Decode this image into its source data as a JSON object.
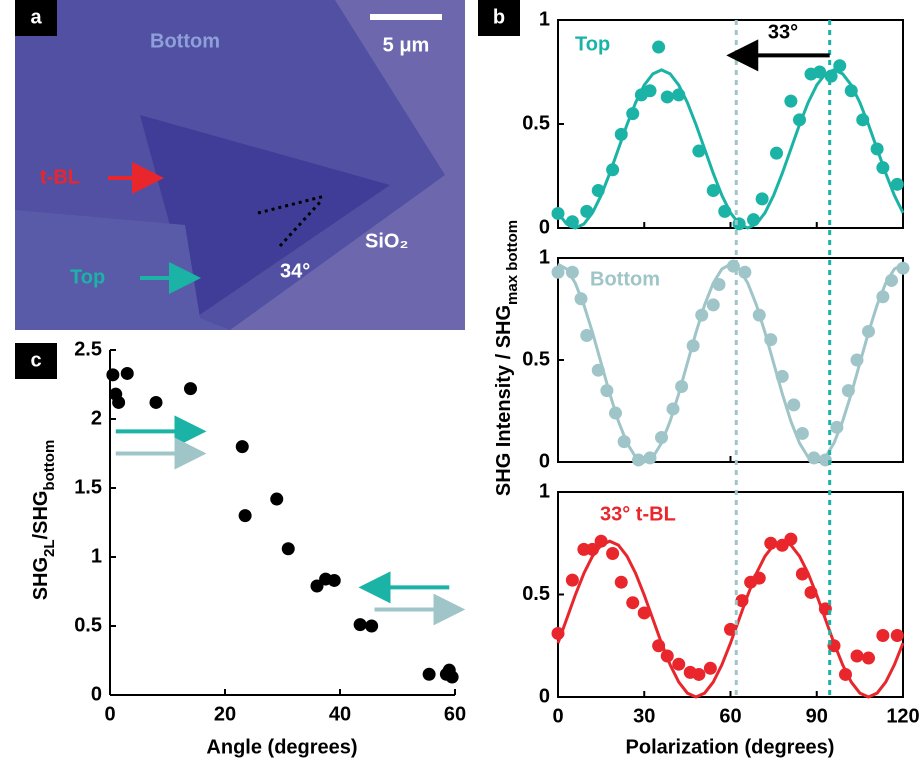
{
  "image_panel": {
    "panel_label": "a",
    "labels": {
      "bottom": "Bottom",
      "scale": "5 μm",
      "tbl": "t-BL",
      "top": "Top",
      "angle": "34°",
      "substrate": "SiO₂"
    }
  },
  "chart_data": [
    {
      "type": "scatter",
      "panel_label": "b",
      "xlim": [
        0,
        120
      ],
      "xticks": [
        0,
        30,
        60,
        90,
        120
      ],
      "xtick_labels": false,
      "ylim": [
        0,
        1
      ],
      "yticks": [
        0,
        0.5,
        1
      ],
      "frame": true,
      "series": [
        {
          "name": "Top",
          "color": "#1ab3a6",
          "type": "scatter",
          "x": [
            0,
            5,
            10,
            14,
            19,
            22,
            26,
            29,
            32,
            35,
            38,
            42,
            49,
            54,
            58,
            63,
            68,
            71,
            76,
            81,
            84,
            88,
            91,
            95,
            98,
            102,
            106,
            111,
            113,
            118
          ],
          "values": [
            0.07,
            0.03,
            0.08,
            0.18,
            0.28,
            0.45,
            0.55,
            0.64,
            0.66,
            0.87,
            0.63,
            0.64,
            0.37,
            0.18,
            0.08,
            0.02,
            0.04,
            0.14,
            0.36,
            0.61,
            0.52,
            0.74,
            0.75,
            0.73,
            0.78,
            0.66,
            0.52,
            0.38,
            0.29,
            0.21
          ]
        },
        {
          "color": "#1ab3a6",
          "type": "line",
          "x": [
            0,
            3,
            6,
            9,
            12,
            15,
            18,
            21,
            24,
            27,
            30,
            33,
            36,
            39,
            42,
            45,
            48,
            51,
            54,
            57,
            60,
            63,
            66,
            69,
            72,
            75,
            78,
            81,
            84,
            87,
            90,
            93,
            96,
            99,
            102,
            105,
            108,
            111,
            114,
            117,
            120
          ],
          "values": [
            0.073,
            0.019,
            0,
            0.019,
            0.073,
            0.157,
            0.263,
            0.38,
            0.497,
            0.603,
            0.687,
            0.741,
            0.76,
            0.741,
            0.687,
            0.603,
            0.497,
            0.38,
            0.263,
            0.157,
            0.073,
            0.019,
            0,
            0.019,
            0.073,
            0.157,
            0.263,
            0.38,
            0.497,
            0.603,
            0.687,
            0.741,
            0.76,
            0.741,
            0.687,
            0.603,
            0.497,
            0.38,
            0.263,
            0.157,
            0.073
          ]
        }
      ],
      "vlines": [
        {
          "x": 62,
          "color": "#9fc5c8"
        },
        {
          "x": 94.5,
          "color": "#1ab3a6"
        }
      ],
      "annotation": {
        "text": "33°",
        "from": 94.5,
        "to": 62,
        "y": 0.83
      }
    },
    {
      "type": "scatter",
      "xlim": [
        0,
        120
      ],
      "xticks": [
        0,
        30,
        60,
        90,
        120
      ],
      "xtick_labels": false,
      "ylim": [
        0,
        1
      ],
      "yticks": [
        0,
        0.5,
        1
      ],
      "frame": true,
      "ylabel": [
        "SHG Intensity / SHG",
        "max bottom"
      ],
      "series": [
        {
          "name": "Bottom",
          "color": "#9fc5c8",
          "type": "scatter",
          "x": [
            0,
            5,
            8,
            10,
            14,
            17,
            20,
            23,
            28,
            32,
            36,
            40,
            43,
            47,
            50,
            54,
            56,
            61,
            65,
            70,
            74,
            78,
            82,
            85,
            89,
            93,
            97,
            101,
            104,
            108,
            113,
            116,
            120
          ],
          "values": [
            0.93,
            0.93,
            0.8,
            0.62,
            0.45,
            0.35,
            0.24,
            0.1,
            0.01,
            0.02,
            0.12,
            0.26,
            0.37,
            0.57,
            0.72,
            0.77,
            0.87,
            0.96,
            0.93,
            0.72,
            0.6,
            0.42,
            0.28,
            0.14,
            0.02,
            0.01,
            0.17,
            0.35,
            0.5,
            0.64,
            0.81,
            0.89,
            0.95
          ]
        },
        {
          "color": "#9fc5c8",
          "type": "line",
          "x": [
            0,
            3,
            6,
            9,
            12,
            15,
            18,
            21,
            24,
            27,
            30,
            33,
            36,
            39,
            42,
            45,
            48,
            51,
            54,
            57,
            60,
            63,
            66,
            69,
            72,
            75,
            78,
            81,
            84,
            87,
            90,
            93,
            96,
            99,
            102,
            105,
            108,
            111,
            114,
            117,
            120
          ],
          "values": [
            0.97,
            0.946,
            0.877,
            0.77,
            0.635,
            0.485,
            0.335,
            0.2,
            0.093,
            0.024,
            0,
            0.024,
            0.093,
            0.2,
            0.335,
            0.485,
            0.635,
            0.77,
            0.877,
            0.946,
            0.97,
            0.946,
            0.877,
            0.77,
            0.635,
            0.485,
            0.335,
            0.2,
            0.093,
            0.024,
            0,
            0.024,
            0.093,
            0.2,
            0.335,
            0.485,
            0.635,
            0.77,
            0.877,
            0.946,
            0.97
          ]
        }
      ]
    },
    {
      "type": "scatter",
      "xlim": [
        0,
        120
      ],
      "xticks": [
        0,
        30,
        60,
        90,
        120
      ],
      "ylim": [
        0,
        1
      ],
      "yticks": [
        0,
        0.5,
        1
      ],
      "frame": true,
      "xlabel": "Polarization (degrees)",
      "series": [
        {
          "name": "33° t-BL",
          "color": "#e8262c",
          "type": "scatter",
          "x": [
            0,
            5,
            9,
            12,
            15,
            19,
            22,
            26,
            30,
            35,
            38,
            42,
            46,
            49,
            53,
            60,
            64,
            67,
            70,
            74,
            78,
            81,
            85,
            88,
            93,
            96,
            100,
            104,
            108,
            113,
            118
          ],
          "values": [
            0.31,
            0.57,
            0.72,
            0.72,
            0.76,
            0.7,
            0.56,
            0.46,
            0.41,
            0.25,
            0.2,
            0.16,
            0.12,
            0.11,
            0.14,
            0.33,
            0.47,
            0.56,
            0.58,
            0.75,
            0.74,
            0.77,
            0.6,
            0.51,
            0.43,
            0.25,
            0.11,
            0.2,
            0.19,
            0.3,
            0.3
          ]
        },
        {
          "color": "#e8262c",
          "type": "line",
          "x": [
            0,
            3,
            6,
            9,
            12,
            15,
            18,
            21,
            24,
            27,
            30,
            33,
            36,
            39,
            42,
            45,
            48,
            51,
            54,
            57,
            60,
            63,
            66,
            69,
            72,
            75,
            78,
            81,
            84,
            87,
            90,
            93,
            96,
            99,
            102,
            105,
            108,
            111,
            114,
            117,
            120
          ],
          "values": [
            0.263,
            0.38,
            0.497,
            0.603,
            0.687,
            0.741,
            0.76,
            0.741,
            0.687,
            0.603,
            0.497,
            0.38,
            0.263,
            0.157,
            0.073,
            0.019,
            0,
            0.019,
            0.073,
            0.157,
            0.263,
            0.38,
            0.497,
            0.603,
            0.687,
            0.741,
            0.76,
            0.741,
            0.687,
            0.603,
            0.497,
            0.38,
            0.263,
            0.157,
            0.073,
            0.019,
            0,
            0.019,
            0.073,
            0.157,
            0.263
          ]
        }
      ]
    },
    {
      "type": "scatter",
      "panel_label": "c",
      "xlim": [
        0,
        60
      ],
      "xticks": [
        0,
        20,
        40,
        60
      ],
      "ylim": [
        0,
        2.5
      ],
      "yticks": [
        0,
        0.5,
        1,
        1.5,
        2,
        2.5
      ],
      "frame": false,
      "xlabel": "Angle (degrees)",
      "ylabel": [
        "SHG",
        "2L",
        "/SHG",
        "bottom"
      ],
      "series": [
        {
          "color": "#000000",
          "type": "scatter",
          "x": [
            0.5,
            1,
            1.5,
            3,
            8,
            14,
            23,
            23.5,
            29,
            31,
            36,
            37.5,
            39,
            43.5,
            45.5,
            55.5,
            58.5,
            59,
            59.5
          ],
          "values": [
            2.32,
            2.18,
            2.12,
            2.33,
            2.12,
            2.22,
            1.8,
            1.3,
            1.42,
            1.06,
            0.79,
            0.84,
            0.83,
            0.51,
            0.5,
            0.15,
            0.15,
            0.18,
            0.13
          ]
        }
      ],
      "arrows": [
        {
          "y": 1.91,
          "x": [
            1,
            14
          ],
          "color": "#1ab3a6"
        },
        {
          "y": 1.75,
          "x": [
            1,
            14
          ],
          "color": "#9fc5c8"
        },
        {
          "y": 0.78,
          "x": [
            59,
            46
          ],
          "color": "#1ab3a6"
        },
        {
          "y": 0.62,
          "x": [
            46,
            59
          ],
          "color": "#9fc5c8"
        }
      ]
    }
  ]
}
